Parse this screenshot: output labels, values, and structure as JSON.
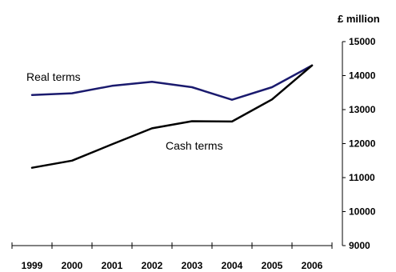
{
  "chart_data": {
    "type": "line",
    "unit_label": "£ million",
    "x": [
      "1999",
      "2000",
      "2001",
      "2002",
      "2003",
      "2004",
      "2005",
      "2006"
    ],
    "series": [
      {
        "name": "Real terms",
        "color": "#1a1a6e",
        "values": [
          13430,
          13480,
          13700,
          13820,
          13660,
          13290,
          13660,
          14300
        ]
      },
      {
        "name": "Cash terms",
        "color": "#000000",
        "values": [
          11290,
          11500,
          11980,
          12450,
          12660,
          12650,
          13300,
          14300
        ]
      }
    ],
    "ylim": [
      9000,
      15000
    ],
    "y_ticks": [
      9000,
      10000,
      11000,
      12000,
      13000,
      14000,
      15000
    ],
    "grid": false
  }
}
